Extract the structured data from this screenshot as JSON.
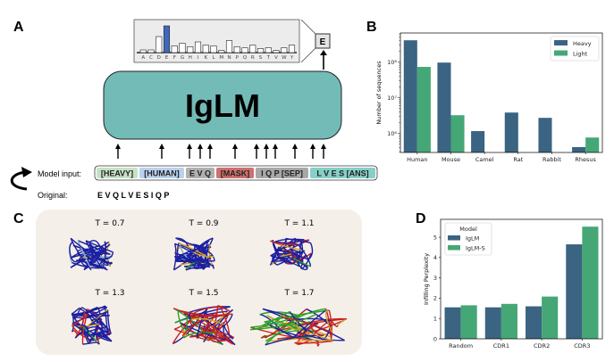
{
  "panel_labels": {
    "a": "A",
    "b": "B",
    "c": "C",
    "d": "D"
  },
  "panel_a": {
    "model_name": "IgLM",
    "predicted_token": "E",
    "histogram": {
      "letters": [
        "A",
        "C",
        "D",
        "E",
        "F",
        "G",
        "H",
        "I",
        "K",
        "L",
        "M",
        "N",
        "P",
        "Q",
        "R",
        "S",
        "T",
        "V",
        "W",
        "Y"
      ],
      "values": [
        0.1,
        0.1,
        0.6,
        1.0,
        0.25,
        0.35,
        0.22,
        0.4,
        0.28,
        0.25,
        0.08,
        0.45,
        0.22,
        0.18,
        0.28,
        0.15,
        0.18,
        0.08,
        0.18,
        0.28
      ],
      "highlight": "E",
      "highlight_color": "#4169b8"
    },
    "model_input_label": "Model input:",
    "original_label": "Original:",
    "original_sequence": "E V Q L V E S I Q P",
    "tokens": [
      {
        "text": "[HEAVY]",
        "color": "#c6e2c6"
      },
      {
        "text": "[HUMAN]",
        "color": "#b9d2f0"
      },
      {
        "text": "E V Q",
        "color": "#b0b0b0"
      },
      {
        "text": "[MASK]",
        "color": "#d07070"
      },
      {
        "text": "I Q P [SEP]",
        "color": "#a8a8a8"
      },
      {
        "text": "L V E S [ANS]",
        "color": "#86d0c8"
      }
    ],
    "model_color": "#72bbb6"
  },
  "panel_c": {
    "temperatures": [
      "T = 0.7",
      "T = 0.9",
      "T = 1.1",
      "T = 1.3",
      "T = 1.5",
      "T = 1.7"
    ],
    "background": "#f5efe9"
  },
  "chart_data": [
    {
      "type": "bar",
      "scale": "log",
      "ylabel": "Number of sequences",
      "xlabel": "",
      "categories": [
        "Human",
        "Mouse",
        "Camel",
        "Rat",
        "Rabbit",
        "Rhesus"
      ],
      "ylim": [
        290000,
        640000000
      ],
      "yticks": [
        {
          "value": 1000000,
          "label": "10⁶"
        },
        {
          "value": 10000000,
          "label": "10⁷"
        },
        {
          "value": 100000000,
          "label": "10⁸"
        }
      ],
      "legend": "top-right",
      "series": [
        {
          "name": "Heavy",
          "color": "#3b6482",
          "values": [
            400000000,
            95000000,
            1150000,
            3800000,
            2700000,
            410000
          ]
        },
        {
          "name": "Light",
          "color": "#45a775",
          "values": [
            72000000,
            3200000,
            null,
            null,
            null,
            760000
          ]
        }
      ]
    },
    {
      "type": "bar",
      "ylabel": "Infilling Perplexity",
      "xlabel": "",
      "categories": [
        "Random",
        "CDR1",
        "CDR2",
        "CDR3"
      ],
      "ylim": [
        0,
        5.88
      ],
      "yticks": [
        0,
        1,
        2,
        3,
        4,
        5
      ],
      "legend": "top-left",
      "legend_title": "Model",
      "series": [
        {
          "name": "IgLM",
          "color": "#3b6482",
          "values": [
            1.55,
            1.55,
            1.6,
            4.65
          ]
        },
        {
          "name": "IgLM-S",
          "color": "#45a775",
          "values": [
            1.65,
            1.72,
            2.08,
            5.52
          ]
        }
      ]
    }
  ]
}
